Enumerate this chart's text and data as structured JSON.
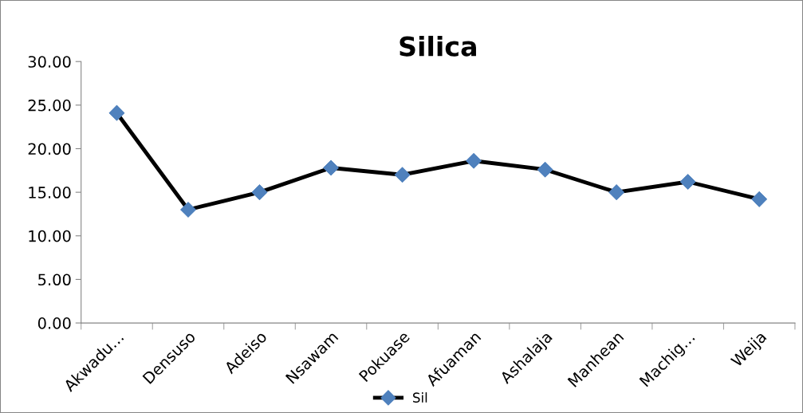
{
  "chart_data": {
    "type": "line",
    "title": "Silica",
    "categories": [
      "Akwadu…",
      "Densuso",
      "Adeiso",
      "Nsawam",
      "Pokuase",
      "Afuaman",
      "Ashalaja",
      "Manhean",
      "Machig…",
      "Weija"
    ],
    "series": [
      {
        "name": "Sil",
        "color": "#000000",
        "colors": [
          "#4f81bd",
          "#4f81bd",
          "#4f81bd",
          "#4f81bd",
          "#4f81bd",
          "#4f81bd",
          "#4f81bd",
          "#4f81bd",
          "#4f81bd",
          "#4f81bd"
        ],
        "values": [
          24.1,
          13.0,
          15.0,
          17.8,
          17.0,
          18.6,
          17.6,
          15.0,
          16.2,
          14.2
        ]
      }
    ],
    "ylim": [
      0,
      30
    ],
    "yticks": [
      {
        "value": 0,
        "label": "0.00"
      },
      {
        "value": 5,
        "label": "5.00"
      },
      {
        "value": 10,
        "label": "10.00"
      },
      {
        "value": 15,
        "label": "15.00"
      },
      {
        "value": 20,
        "label": "20.00"
      },
      {
        "value": 25,
        "label": "25.00"
      },
      {
        "value": 30,
        "label": "30.00"
      }
    ],
    "marker": "diamond",
    "line_style": "solid",
    "legend": "bottom",
    "grid": false
  }
}
